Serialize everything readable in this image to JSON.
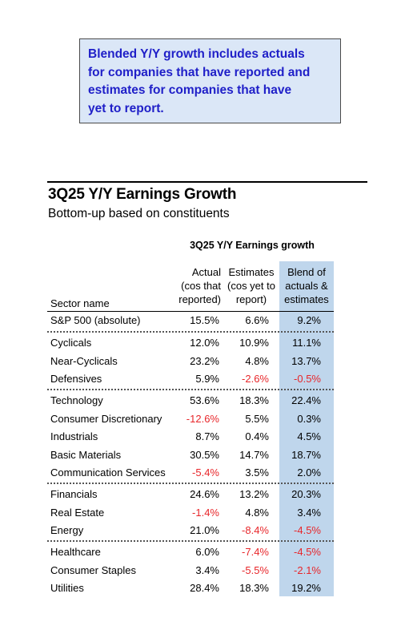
{
  "note": {
    "lines": [
      "Blended Y/Y growth includes actuals",
      "for companies that have reported and",
      "estimates for companies that have",
      "yet to report."
    ]
  },
  "title": "3Q25 Y/Y Earnings Growth",
  "subtitle": "Bottom-up based on constituents",
  "table": {
    "group_header": "3Q25 Y/Y Earnings growth",
    "columns": {
      "sector": "Sector name",
      "actual": [
        "Actual",
        "(cos that",
        "reported)"
      ],
      "estimates": [
        "Estimates",
        "(cos yet to",
        "report)"
      ],
      "blend": [
        "Blend of",
        "actuals &",
        "estimates"
      ]
    },
    "negative_color": "#e8262a",
    "blend_highlight_color": "#bfd6ec",
    "groups": [
      [
        {
          "sector": "S&P 500 (absolute)",
          "actual": "15.5%",
          "estimates": "6.6%",
          "blend": "9.2%"
        }
      ],
      [
        {
          "sector": "Cyclicals",
          "actual": "12.0%",
          "estimates": "10.9%",
          "blend": "11.1%"
        },
        {
          "sector": "Near-Cyclicals",
          "actual": "23.2%",
          "estimates": "4.8%",
          "blend": "13.7%"
        },
        {
          "sector": "Defensives",
          "actual": "5.9%",
          "estimates": "-2.6%",
          "blend": "-0.5%"
        }
      ],
      [
        {
          "sector": "Technology",
          "actual": "53.6%",
          "estimates": "18.3%",
          "blend": "22.4%"
        },
        {
          "sector": "Consumer Discretionary",
          "actual": "-12.6%",
          "estimates": "5.5%",
          "blend": "0.3%"
        },
        {
          "sector": "Industrials",
          "actual": "8.7%",
          "estimates": "0.4%",
          "blend": "4.5%"
        },
        {
          "sector": "Basic Materials",
          "actual": "30.5%",
          "estimates": "14.7%",
          "blend": "18.7%"
        },
        {
          "sector": "Communication Services",
          "actual": "-5.4%",
          "estimates": "3.5%",
          "blend": "2.0%"
        }
      ],
      [
        {
          "sector": "Financials",
          "actual": "24.6%",
          "estimates": "13.2%",
          "blend": "20.3%"
        },
        {
          "sector": "Real Estate",
          "actual": "-1.4%",
          "estimates": "4.8%",
          "blend": "3.4%"
        },
        {
          "sector": "Energy",
          "actual": "21.0%",
          "estimates": "-8.4%",
          "blend": "-4.5%"
        }
      ],
      [
        {
          "sector": "Healthcare",
          "actual": "6.0%",
          "estimates": "-7.4%",
          "blend": "-4.5%"
        },
        {
          "sector": "Consumer Staples",
          "actual": "3.4%",
          "estimates": "-5.5%",
          "blend": "-2.1%"
        },
        {
          "sector": "Utilities",
          "actual": "28.4%",
          "estimates": "18.3%",
          "blend": "19.2%"
        }
      ]
    ]
  }
}
